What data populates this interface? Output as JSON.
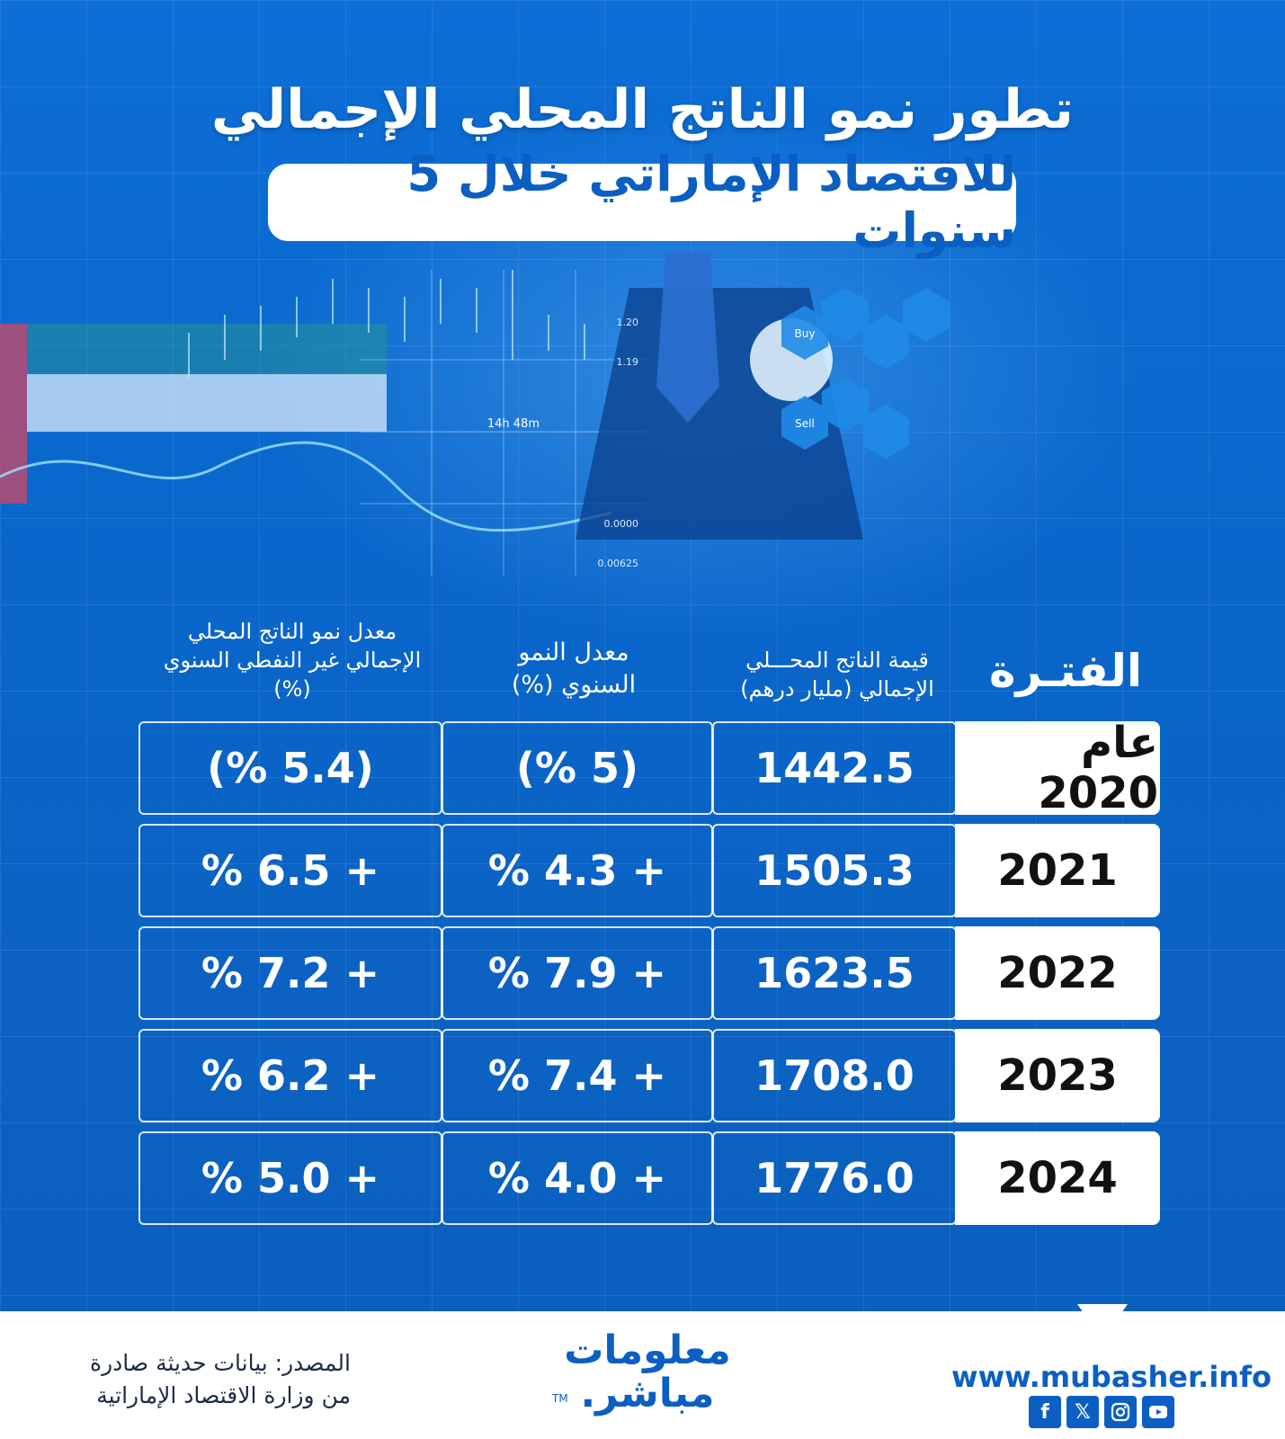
{
  "title": "تطور نمو الناتج المحلي الإجمالي",
  "subtitle": "للاقتصاد الإماراتي خلال 5 سنوات",
  "chart_data": {
    "type": "table",
    "columns": [
      "الفتـرة",
      "قيمة الناتج المحـــلي الإجمالي (مليار درهم)",
      "معدل النمو السنوي (%)",
      "معدل نمو الناتج المحلي الإجمالي غير النفطي السنوي (%)"
    ],
    "rows": [
      {
        "period": "عام 2020",
        "gdp": "1442.5",
        "growth": "(% 5)",
        "non_oil": "(% 5.4)"
      },
      {
        "period": "2021",
        "gdp": "1505.3",
        "growth": "% 4.3 +",
        "non_oil": "% 6.5 +"
      },
      {
        "period": "2022",
        "gdp": "1623.5",
        "growth": "% 7.9 +",
        "non_oil": "% 7.2 +"
      },
      {
        "period": "2023",
        "gdp": "1708.0",
        "growth": "% 7.4 +",
        "non_oil": "% 6.2 +"
      },
      {
        "period": "2024",
        "gdp": "1776.0",
        "growth": "% 4.0 +",
        "non_oil": "% 5.0 +"
      }
    ]
  },
  "hero": {
    "labels": [
      "Buy",
      "Sell",
      "14h 48m",
      "1.20",
      "1.19",
      "0.0000",
      "0.00625"
    ]
  },
  "footer": {
    "source_line1": "المصدر: بيانات حديثة صادرة",
    "source_line2": "من وزارة الاقتصاد الإماراتية",
    "logo_line1": "معلومات",
    "logo_line2": "مباشر.",
    "trademark": "TM",
    "website": "www.mubasher.info",
    "social_icons": [
      "facebook-icon",
      "x-icon",
      "instagram-icon",
      "youtube-icon"
    ]
  },
  "colors": {
    "background": "#0a63c4",
    "accent": "#0b5fc2",
    "white": "#ffffff"
  }
}
